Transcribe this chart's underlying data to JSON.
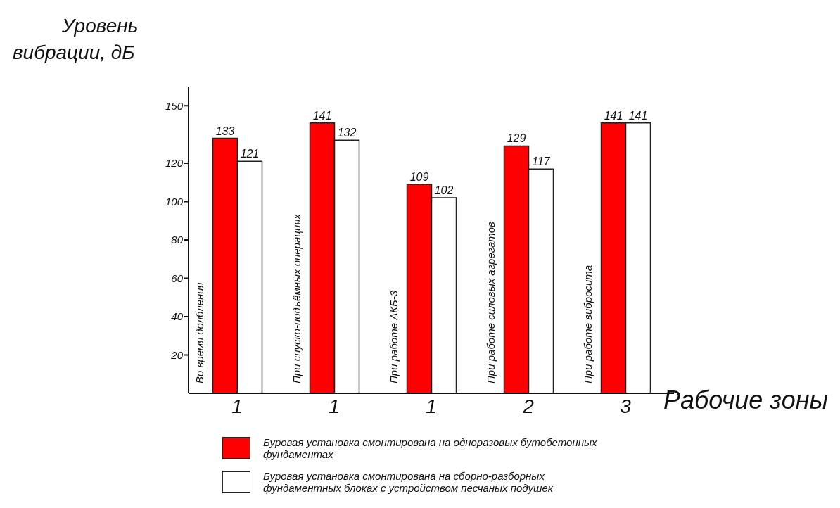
{
  "chart_data": {
    "type": "bar",
    "ylabel": "Уровень\nвибрации, дБ",
    "xlabel": "Рабочие зоны",
    "categories": [
      "1",
      "1",
      "1",
      "2",
      "3"
    ],
    "series": [
      {
        "name": "Буровая установка смонтирована на одноразовых бутобетонных фундаментах",
        "color": "#ff0000",
        "values": [
          133,
          141,
          109,
          129,
          141
        ]
      },
      {
        "name": "Буровая установка смонтирована на сборно-разборных фундаментных блоках с устройством песчаных подушек",
        "color": "#ffffff",
        "values": [
          121,
          132,
          102,
          117,
          141
        ]
      }
    ],
    "ylim": [
      0,
      160
    ],
    "yticks": [
      20,
      40,
      60,
      80,
      100,
      120,
      150
    ],
    "annotations": [
      "Во время долбления",
      "При спуско-подъёмных операциях",
      "При работе АКБ-3",
      "При работе силовых агрегатов",
      "При работе вибросита"
    ],
    "data_labels": true,
    "grid": false,
    "legend": "bottom"
  }
}
